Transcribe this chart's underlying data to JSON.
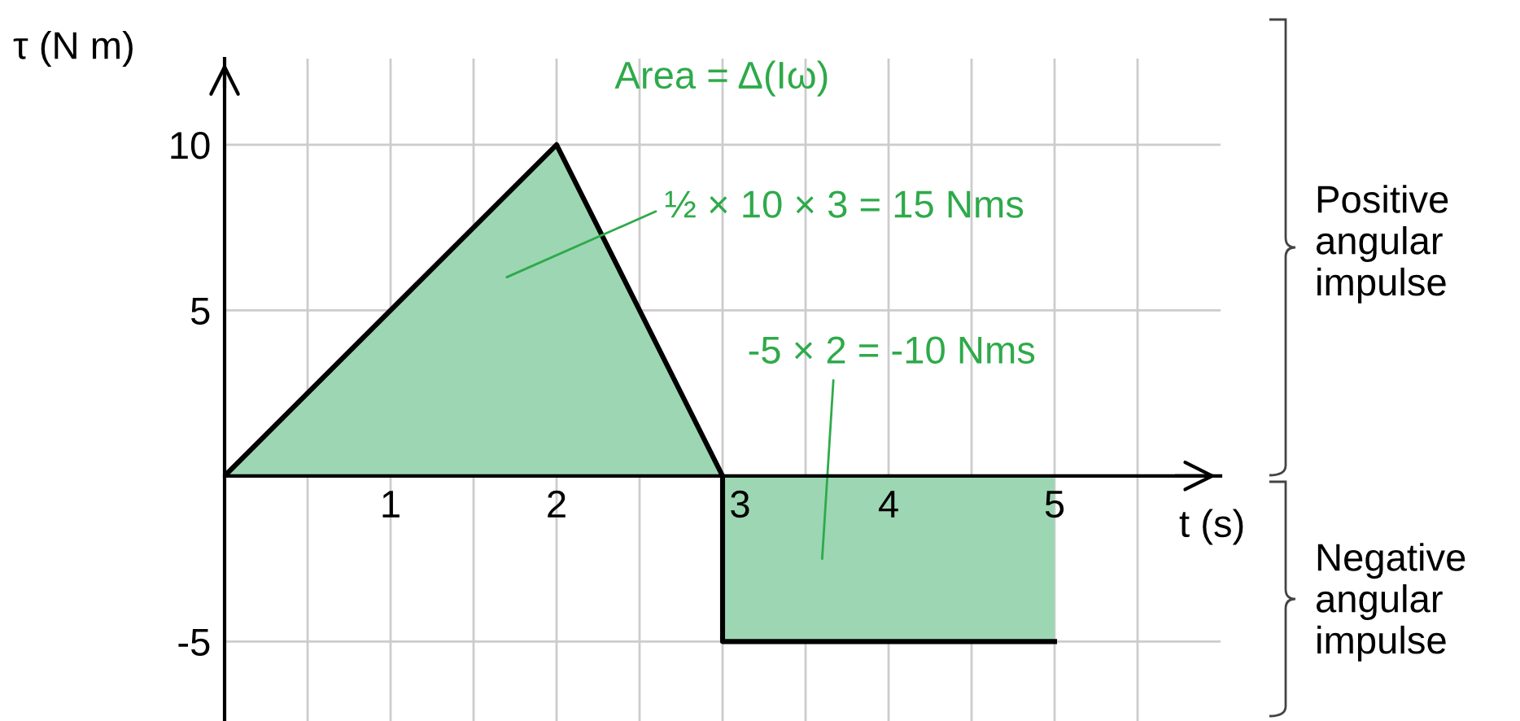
{
  "chart_data": {
    "type": "area",
    "xlabel": "t (s)",
    "ylabel": "τ (N m)",
    "x": [
      0,
      2,
      3,
      3,
      5
    ],
    "series": [
      {
        "color": "#9dd6b3",
        "values": [
          0,
          10,
          0,
          -5,
          -5
        ]
      }
    ],
    "xlim": [
      0,
      6
    ],
    "ylim": [
      -7.4,
      12.6
    ],
    "xticks": [
      {
        "value": 0.5,
        "label": null
      },
      1,
      {
        "value": 1.5,
        "label": null
      },
      2,
      {
        "value": 2.5,
        "label": null
      },
      3,
      {
        "value": 3.5,
        "label": null
      },
      4,
      {
        "value": 4.5,
        "label": null
      },
      5,
      {
        "value": 5.5,
        "label": null
      }
    ],
    "yticks": [
      -5,
      5,
      10
    ],
    "grid": true,
    "annotations": [
      "Area = Δ(Iω)",
      "½ × 10 × 3 = 15 Nms",
      "-5 × 2 = -10 Nms",
      "Positive angular impulse",
      "Negative angular impulse"
    ]
  }
}
